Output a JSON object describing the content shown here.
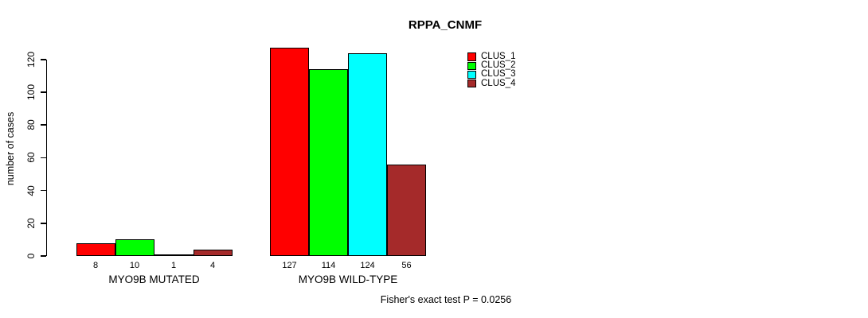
{
  "chart_data": {
    "type": "bar",
    "title": "RPPA_CNMF",
    "ylabel": "number of cases",
    "xlabel": "",
    "annotation": "Fisher's exact test P = 0.0256",
    "categories": [
      "MYO9B MUTATED",
      "MYO9B WILD-TYPE"
    ],
    "series": [
      {
        "name": "CLUS_1",
        "color": "#FF0000",
        "values": [
          8,
          127
        ]
      },
      {
        "name": "CLUS_2",
        "color": "#00FF00",
        "values": [
          10,
          114
        ]
      },
      {
        "name": "CLUS_3",
        "color": "#00FFFF",
        "values": [
          1,
          124
        ]
      },
      {
        "name": "CLUS_4",
        "color": "#A52A2A",
        "values": [
          4,
          56
        ]
      }
    ],
    "bar_value_labels": [
      [
        "8",
        "10",
        "1",
        "4"
      ],
      [
        "127",
        "114",
        "124",
        "56"
      ]
    ],
    "y_ticks": [
      0,
      20,
      40,
      60,
      80,
      100,
      120
    ],
    "ylim": [
      0,
      130
    ],
    "grid": false,
    "legend_position": "top-right",
    "axis_color": "#000000",
    "background_color": "#FFFFFF"
  }
}
